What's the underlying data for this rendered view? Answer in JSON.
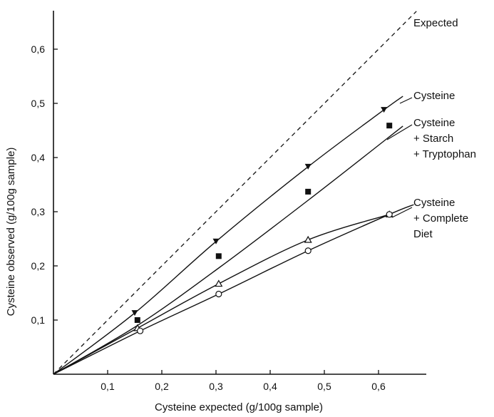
{
  "chart_data": {
    "type": "line",
    "xlabel": "Cysteine expected (g/100g sample)",
    "ylabel": "Cysteine observed (g/100g sample)",
    "xlim": [
      0,
      0.7
    ],
    "ylim": [
      0,
      0.7
    ],
    "x_ticks": [
      0.1,
      0.2,
      0.3,
      0.4,
      0.5,
      0.6
    ],
    "x_tick_labels": [
      "0,1",
      "0,2",
      "0,3",
      "0,4",
      "0,5",
      "0,6"
    ],
    "y_ticks": [
      0.1,
      0.2,
      0.3,
      0.4,
      0.5,
      0.6
    ],
    "y_tick_labels": [
      "0,1",
      "0,2",
      "0,3",
      "0,4",
      "0,5",
      "0,6"
    ],
    "grid": false,
    "series": [
      {
        "name": "Expected",
        "label_lines": [
          "Expected"
        ],
        "style": "dashed",
        "marker": "none",
        "x": [
          0,
          0.67
        ],
        "y": [
          0,
          0.67
        ],
        "curve_x": [
          0,
          0.67
        ],
        "curve_y": [
          0,
          0.67
        ]
      },
      {
        "name": "Cysteine",
        "label_lines": [
          "Cysteine"
        ],
        "style": "solid",
        "marker": "filled-triangle-down",
        "x": [
          0.15,
          0.3,
          0.47,
          0.61
        ],
        "y": [
          0.113,
          0.245,
          0.383,
          0.488
        ],
        "curve_x": [
          0,
          0.15,
          0.3,
          0.47,
          0.61,
          0.645
        ],
        "curve_y": [
          0,
          0.113,
          0.245,
          0.383,
          0.488,
          0.513
        ]
      },
      {
        "name": "Cysteine + Starch + Tryptophan",
        "label_lines": [
          "Cysteine",
          "+ Starch",
          "+ Tryptophan"
        ],
        "style": "solid",
        "marker": "filled-square",
        "x": [
          0.155,
          0.305,
          0.47,
          0.62
        ],
        "y": [
          0.1,
          0.218,
          0.337,
          0.459
        ],
        "curve_x": [
          0,
          0.155,
          0.305,
          0.47,
          0.645
        ],
        "curve_y": [
          0,
          0.09,
          0.196,
          0.321,
          0.458
        ]
      },
      {
        "name": "Cysteine + Complete Diet (triangle)",
        "label_lines": [
          "Cysteine",
          "+ Complete",
          "Diet"
        ],
        "style": "solid",
        "marker": "open-triangle",
        "x": [
          0.155,
          0.305,
          0.47,
          0.62
        ],
        "y": [
          0.085,
          0.167,
          0.248,
          0.295
        ],
        "curve_x": [
          0,
          0.155,
          0.305,
          0.47,
          0.62
        ],
        "curve_y": [
          0,
          0.085,
          0.167,
          0.248,
          0.295
        ]
      },
      {
        "name": "Cysteine + Complete Diet (circle)",
        "label_lines": [],
        "style": "solid",
        "marker": "open-circle",
        "x": [
          0.16,
          0.305,
          0.47,
          0.62
        ],
        "y": [
          0.08,
          0.148,
          0.228,
          0.295
        ],
        "curve_x": [
          0,
          0.16,
          0.305,
          0.47,
          0.62,
          0.665
        ],
        "curve_y": [
          0,
          0.08,
          0.148,
          0.228,
          0.295,
          0.313
        ]
      }
    ]
  }
}
